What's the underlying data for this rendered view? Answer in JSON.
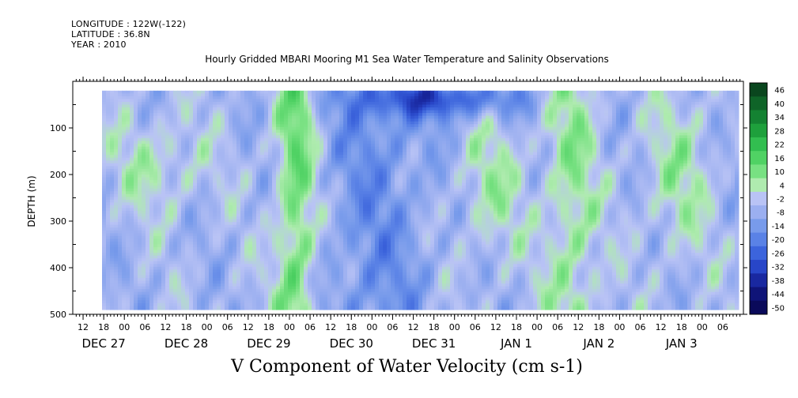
{
  "header": {
    "longitude": "LONGITUDE : 122W(-122)",
    "latitude": "LATITUDE : 36.8N",
    "year": "YEAR : 2010"
  },
  "chart_data": {
    "type": "heatmap",
    "title": "Hourly Gridded MBARI Mooring M1 Sea Water Temperature and Salinity Observations",
    "variable_title": "V Component of Water Velocity (cm s-1)",
    "ylabel": "DEPTH (m)",
    "xlabel": "",
    "y_axis": {
      "ylim": [
        0,
        500
      ],
      "inverted": true,
      "ticks": [
        100,
        200,
        300,
        400,
        500
      ]
    },
    "x_axis": {
      "hour_ticks": [
        "12",
        "18",
        "00",
        "06",
        "12",
        "18",
        "00",
        "06",
        "12",
        "18",
        "00",
        "06",
        "12",
        "18",
        "00",
        "06",
        "12",
        "18",
        "00",
        "06",
        "12",
        "18",
        "00",
        "06",
        "12",
        "18",
        "00",
        "06",
        "12",
        "18",
        "00",
        "06"
      ],
      "day_labels": [
        "DEC 27",
        "DEC 28",
        "DEC 29",
        "DEC 30",
        "DEC 31",
        "JAN  1",
        "JAN  2",
        "JAN  3"
      ]
    },
    "colorbar": {
      "labels": [
        "46",
        "40",
        "34",
        "28",
        "22",
        "16",
        "10",
        "4",
        "-2",
        "-8",
        "-14",
        "-20",
        "-26",
        "-32",
        "-38",
        "-44",
        "-50"
      ],
      "range": [
        -50,
        46
      ]
    },
    "data_extent": {
      "depth_top": 20,
      "depth_bottom": 490
    },
    "pattern_description": "two-day bands"
  }
}
